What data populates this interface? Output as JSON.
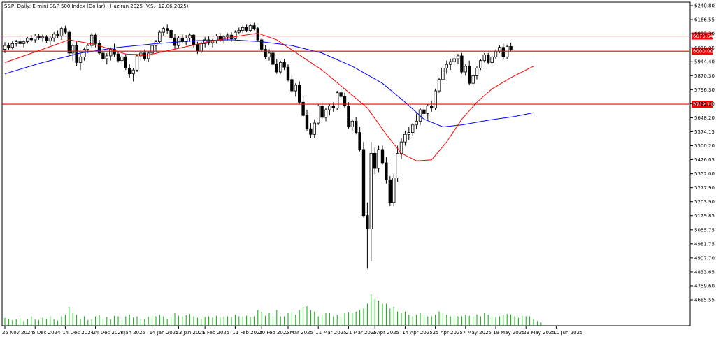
{
  "chart_data": {
    "type": "candlestick",
    "title": "S&P, Daily: E-mini S&P 500 Index (Dollar) - Haziran 2025 (V.S.- 12.06.2025)",
    "ylim": [
      4608,
      6240.8
    ],
    "y_ticks": [
      "6240.80",
      "6166.55",
      "6092.30",
      "6018.05",
      "5944.40",
      "5870.30",
      "5796.30",
      "5722.30",
      "5648.20",
      "5574.15",
      "5500.20",
      "5426.05",
      "5352.00",
      "5277.90",
      "5203.90",
      "5129.85",
      "5055.75",
      "4981.75",
      "4907.70",
      "4833.65",
      "4759.60",
      "4685.55"
    ],
    "x_ticks": [
      {
        "label": "25 Nov 2024",
        "index": 0
      },
      {
        "label": "5 Dec 2024",
        "index": 8
      },
      {
        "label": "14 Dec 2024",
        "index": 16
      },
      {
        "label": "24 Dec 2024",
        "index": 24
      },
      {
        "label": "4 Jan 2025",
        "index": 31
      },
      {
        "label": "14 Jan 2025",
        "index": 39
      },
      {
        "label": "23 Jan 2025",
        "index": 46
      },
      {
        "label": "1 Feb 2025",
        "index": 53
      },
      {
        "label": "11 Feb 2025",
        "index": 61
      },
      {
        "label": "20 Feb 2025",
        "index": 68
      },
      {
        "label": "1 Mar 2025",
        "index": 75
      },
      {
        "label": "11 Mar 2025",
        "index": 83
      },
      {
        "label": "21 Mar 2025",
        "index": 91
      },
      {
        "label": "2 Apr 2025",
        "index": 98
      },
      {
        "label": "14 Apr 2025",
        "index": 106
      },
      {
        "label": "25 Apr 2025",
        "index": 114
      },
      {
        "label": "7 May 2025",
        "index": 122
      },
      {
        "label": "19 May 2025",
        "index": 130
      },
      {
        "label": "29 May 2025",
        "index": 138
      },
      {
        "label": "10 Jun 2025",
        "index": 146
      }
    ],
    "horizontal_lines": [
      {
        "value": 6079.84,
        "label": "6079.84",
        "color": "#ff0000"
      },
      {
        "value": 6000.0,
        "label": "6000.00",
        "color": "#ff0000"
      },
      {
        "value": 5719.74,
        "label": "5719.74",
        "color": "#ff0000"
      }
    ],
    "colors": {
      "up": "#ffffff",
      "down": "#000000",
      "wick": "#000000",
      "ma_fast": "#ff0000",
      "ma_slow": "#0000ff",
      "volume": "#00b000",
      "grid_frame": "#000000"
    },
    "candles": [
      [
        6010,
        6048,
        5990,
        6030
      ],
      [
        6030,
        6045,
        6005,
        6020
      ],
      [
        6020,
        6055,
        6010,
        6040
      ],
      [
        6040,
        6060,
        6025,
        6050
      ],
      [
        6050,
        6065,
        6030,
        6040
      ],
      [
        6040,
        6058,
        6020,
        6050
      ],
      [
        6050,
        6075,
        6040,
        6068
      ],
      [
        6068,
        6085,
        6050,
        6060
      ],
      [
        6060,
        6090,
        6045,
        6080
      ],
      [
        6080,
        6092,
        6060,
        6070
      ],
      [
        6070,
        6088,
        6050,
        6075
      ],
      [
        6075,
        6085,
        6045,
        6055
      ],
      [
        6055,
        6080,
        6030,
        6070
      ],
      [
        6070,
        6100,
        6050,
        6090
      ],
      [
        6090,
        6110,
        6070,
        6080
      ],
      [
        6080,
        6130,
        6060,
        6120
      ],
      [
        6120,
        6135,
        6090,
        6100
      ],
      [
        6100,
        6110,
        5980,
        5990
      ],
      [
        5990,
        6040,
        5950,
        6030
      ],
      [
        6030,
        6050,
        5920,
        5940
      ],
      [
        5940,
        5990,
        5900,
        5970
      ],
      [
        5970,
        6020,
        5950,
        6010
      ],
      [
        6010,
        6040,
        5990,
        6030
      ],
      [
        6030,
        6095,
        6020,
        6085
      ],
      [
        6085,
        6095,
        6020,
        6040
      ],
      [
        6040,
        6060,
        5980,
        5990
      ],
      [
        5990,
        6010,
        5950,
        5960
      ],
      [
        5960,
        5990,
        5930,
        5975
      ],
      [
        5975,
        6020,
        5950,
        6010
      ],
      [
        6010,
        6040,
        5970,
        5985
      ],
      [
        5985,
        6000,
        5940,
        5950
      ],
      [
        5950,
        5990,
        5930,
        5970
      ],
      [
        5970,
        5985,
        5900,
        5910
      ],
      [
        5910,
        5930,
        5860,
        5880
      ],
      [
        5880,
        5910,
        5840,
        5900
      ],
      [
        5900,
        5985,
        5890,
        5975
      ],
      [
        5975,
        6010,
        5950,
        5990
      ],
      [
        5990,
        6010,
        5950,
        5960
      ],
      [
        5960,
        6000,
        5945,
        5990
      ],
      [
        5990,
        6040,
        5975,
        6030
      ],
      [
        6030,
        6060,
        6000,
        6050
      ],
      [
        6050,
        6110,
        6040,
        6100
      ],
      [
        6100,
        6130,
        6080,
        6120
      ],
      [
        6120,
        6140,
        6090,
        6110
      ],
      [
        6110,
        6120,
        6060,
        6070
      ],
      [
        6070,
        6090,
        6010,
        6030
      ],
      [
        6030,
        6080,
        6020,
        6070
      ],
      [
        6070,
        6090,
        6040,
        6050
      ],
      [
        6050,
        6085,
        6030,
        6070
      ],
      [
        6070,
        6095,
        6050,
        6085
      ],
      [
        6085,
        6090,
        6020,
        6035
      ],
      [
        6035,
        6050,
        5985,
        6000
      ],
      [
        6000,
        6050,
        5990,
        6040
      ],
      [
        6040,
        6075,
        6020,
        6060
      ],
      [
        6060,
        6080,
        6030,
        6045
      ],
      [
        6045,
        6065,
        6020,
        6055
      ],
      [
        6055,
        6090,
        6040,
        6080
      ],
      [
        6080,
        6095,
        6050,
        6060
      ],
      [
        6060,
        6085,
        6040,
        6075
      ],
      [
        6075,
        6095,
        6060,
        6085
      ],
      [
        6085,
        6100,
        6050,
        6065
      ],
      [
        6065,
        6110,
        6060,
        6100
      ],
      [
        6100,
        6125,
        6090,
        6110
      ],
      [
        6110,
        6135,
        6095,
        6125
      ],
      [
        6125,
        6140,
        6100,
        6110
      ],
      [
        6110,
        6145,
        6100,
        6135
      ],
      [
        6135,
        6150,
        6110,
        6120
      ],
      [
        6120,
        6130,
        6050,
        6060
      ],
      [
        6060,
        6070,
        6000,
        6010
      ],
      [
        6010,
        6030,
        5960,
        5970
      ],
      [
        5970,
        6010,
        5950,
        5990
      ],
      [
        5990,
        6000,
        5920,
        5930
      ],
      [
        5930,
        5960,
        5880,
        5890
      ],
      [
        5890,
        5950,
        5880,
        5940
      ],
      [
        5940,
        5960,
        5900,
        5915
      ],
      [
        5915,
        5930,
        5840,
        5850
      ],
      [
        5850,
        5880,
        5780,
        5790
      ],
      [
        5790,
        5830,
        5760,
        5820
      ],
      [
        5820,
        5840,
        5720,
        5730
      ],
      [
        5730,
        5760,
        5650,
        5660
      ],
      [
        5660,
        5690,
        5580,
        5590
      ],
      [
        5590,
        5620,
        5540,
        5560
      ],
      [
        5560,
        5640,
        5540,
        5620
      ],
      [
        5620,
        5720,
        5610,
        5710
      ],
      [
        5710,
        5730,
        5640,
        5650
      ],
      [
        5650,
        5700,
        5630,
        5690
      ],
      [
        5690,
        5720,
        5660,
        5710
      ],
      [
        5710,
        5730,
        5680,
        5700
      ],
      [
        5700,
        5790,
        5690,
        5780
      ],
      [
        5780,
        5800,
        5750,
        5760
      ],
      [
        5760,
        5780,
        5700,
        5710
      ],
      [
        5710,
        5730,
        5590,
        5600
      ],
      [
        5600,
        5640,
        5580,
        5630
      ],
      [
        5630,
        5650,
        5560,
        5570
      ],
      [
        5570,
        5600,
        5470,
        5480
      ],
      [
        5480,
        5520,
        5120,
        5130
      ],
      [
        5130,
        5200,
        4850,
        5060
      ],
      [
        5060,
        5520,
        4890,
        5460
      ],
      [
        5460,
        5490,
        5350,
        5380
      ],
      [
        5380,
        5500,
        5360,
        5480
      ],
      [
        5480,
        5500,
        5400,
        5410
      ],
      [
        5410,
        5440,
        5300,
        5320
      ],
      [
        5320,
        5340,
        5180,
        5200
      ],
      [
        5200,
        5350,
        5180,
        5330
      ],
      [
        5330,
        5500,
        5310,
        5460
      ],
      [
        5460,
        5540,
        5430,
        5520
      ],
      [
        5520,
        5580,
        5500,
        5560
      ],
      [
        5560,
        5600,
        5530,
        5570
      ],
      [
        5570,
        5620,
        5550,
        5610
      ],
      [
        5610,
        5670,
        5590,
        5630
      ],
      [
        5630,
        5700,
        5610,
        5690
      ],
      [
        5690,
        5710,
        5650,
        5670
      ],
      [
        5670,
        5720,
        5640,
        5710
      ],
      [
        5710,
        5740,
        5680,
        5700
      ],
      [
        5700,
        5800,
        5690,
        5790
      ],
      [
        5790,
        5860,
        5780,
        5850
      ],
      [
        5850,
        5920,
        5840,
        5910
      ],
      [
        5910,
        5950,
        5880,
        5930
      ],
      [
        5930,
        5960,
        5900,
        5945
      ],
      [
        5945,
        5980,
        5920,
        5960
      ],
      [
        5960,
        5985,
        5930,
        5975
      ],
      [
        5975,
        5990,
        5880,
        5890
      ],
      [
        5890,
        5930,
        5870,
        5920
      ],
      [
        5920,
        5950,
        5820,
        5830
      ],
      [
        5830,
        5880,
        5810,
        5870
      ],
      [
        5870,
        5920,
        5850,
        5910
      ],
      [
        5910,
        5960,
        5900,
        5950
      ],
      [
        5950,
        5990,
        5940,
        5980
      ],
      [
        5980,
        5990,
        5930,
        5940
      ],
      [
        5940,
        5980,
        5920,
        5970
      ],
      [
        5970,
        6010,
        5960,
        6000
      ],
      [
        6000,
        6030,
        5990,
        6020
      ],
      [
        6020,
        6040,
        5960,
        5970
      ],
      [
        5970,
        6035,
        5960,
        6025
      ],
      [
        6025,
        6045,
        6000,
        6010
      ]
    ],
    "ma_fast": [
      [
        0,
        5940
      ],
      [
        10,
        6010
      ],
      [
        17,
        6060
      ],
      [
        24,
        6035
      ],
      [
        32,
        5985
      ],
      [
        38,
        5980
      ],
      [
        46,
        6015
      ],
      [
        54,
        6050
      ],
      [
        62,
        6080
      ],
      [
        67,
        6095
      ],
      [
        72,
        6060
      ],
      [
        78,
        5980
      ],
      [
        84,
        5900
      ],
      [
        90,
        5800
      ],
      [
        96,
        5700
      ],
      [
        101,
        5560
      ],
      [
        105,
        5460
      ],
      [
        109,
        5420
      ],
      [
        113,
        5425
      ],
      [
        117,
        5520
      ],
      [
        121,
        5640
      ],
      [
        125,
        5730
      ],
      [
        129,
        5800
      ],
      [
        134,
        5860
      ],
      [
        140,
        5920
      ]
    ],
    "ma_slow": [
      [
        0,
        5880
      ],
      [
        10,
        5940
      ],
      [
        20,
        5990
      ],
      [
        30,
        6020
      ],
      [
        40,
        6040
      ],
      [
        50,
        6055
      ],
      [
        60,
        6060
      ],
      [
        68,
        6050
      ],
      [
        76,
        6030
      ],
      [
        84,
        5990
      ],
      [
        92,
        5920
      ],
      [
        100,
        5830
      ],
      [
        106,
        5730
      ],
      [
        111,
        5640
      ],
      [
        116,
        5600
      ],
      [
        121,
        5610
      ],
      [
        128,
        5635
      ],
      [
        135,
        5655
      ],
      [
        140,
        5675
      ]
    ],
    "volume": [
      0.25,
      0.22,
      0.18,
      0.2,
      0.24,
      0.15,
      0.22,
      0.3,
      0.2,
      0.18,
      0.25,
      0.22,
      0.3,
      0.2,
      0.16,
      0.3,
      0.35,
      0.6,
      0.4,
      0.35,
      0.22,
      0.3,
      0.18,
      0.2,
      0.3,
      0.34,
      0.22,
      0.28,
      0.2,
      0.32,
      0.3,
      0.18,
      0.3,
      0.36,
      0.26,
      0.3,
      0.2,
      0.22,
      0.28,
      0.32,
      0.3,
      0.35,
      0.3,
      0.22,
      0.28,
      0.4,
      0.32,
      0.3,
      0.34,
      0.38,
      0.3,
      0.25,
      0.22,
      0.28,
      0.3,
      0.26,
      0.32,
      0.28,
      0.3,
      0.3,
      0.28,
      0.35,
      0.3,
      0.3,
      0.32,
      0.28,
      0.3,
      0.5,
      0.45,
      0.32,
      0.4,
      0.3,
      0.5,
      0.3,
      0.3,
      0.4,
      0.45,
      0.35,
      0.5,
      0.6,
      0.62,
      0.5,
      0.45,
      0.3,
      0.35,
      0.4,
      0.4,
      0.3,
      0.35,
      0.28,
      0.4,
      0.42,
      0.4,
      0.45,
      0.5,
      0.55,
      0.7,
      1.0,
      0.85,
      0.8,
      0.7,
      0.7,
      0.55,
      0.6,
      0.45,
      0.4,
      0.45,
      0.35,
      0.3,
      0.35,
      0.4,
      0.35,
      0.3,
      0.3,
      0.35,
      0.45,
      0.4,
      0.35,
      0.3,
      0.32,
      0.3,
      0.3,
      0.35,
      0.32,
      0.3,
      0.36,
      0.3,
      0.4,
      0.35,
      0.3,
      0.28,
      0.3,
      0.35,
      0.38,
      0.36,
      0.3,
      0.25,
      0.32,
      0.3,
      0.3,
      0.2,
      0.15,
      0.1
    ]
  }
}
